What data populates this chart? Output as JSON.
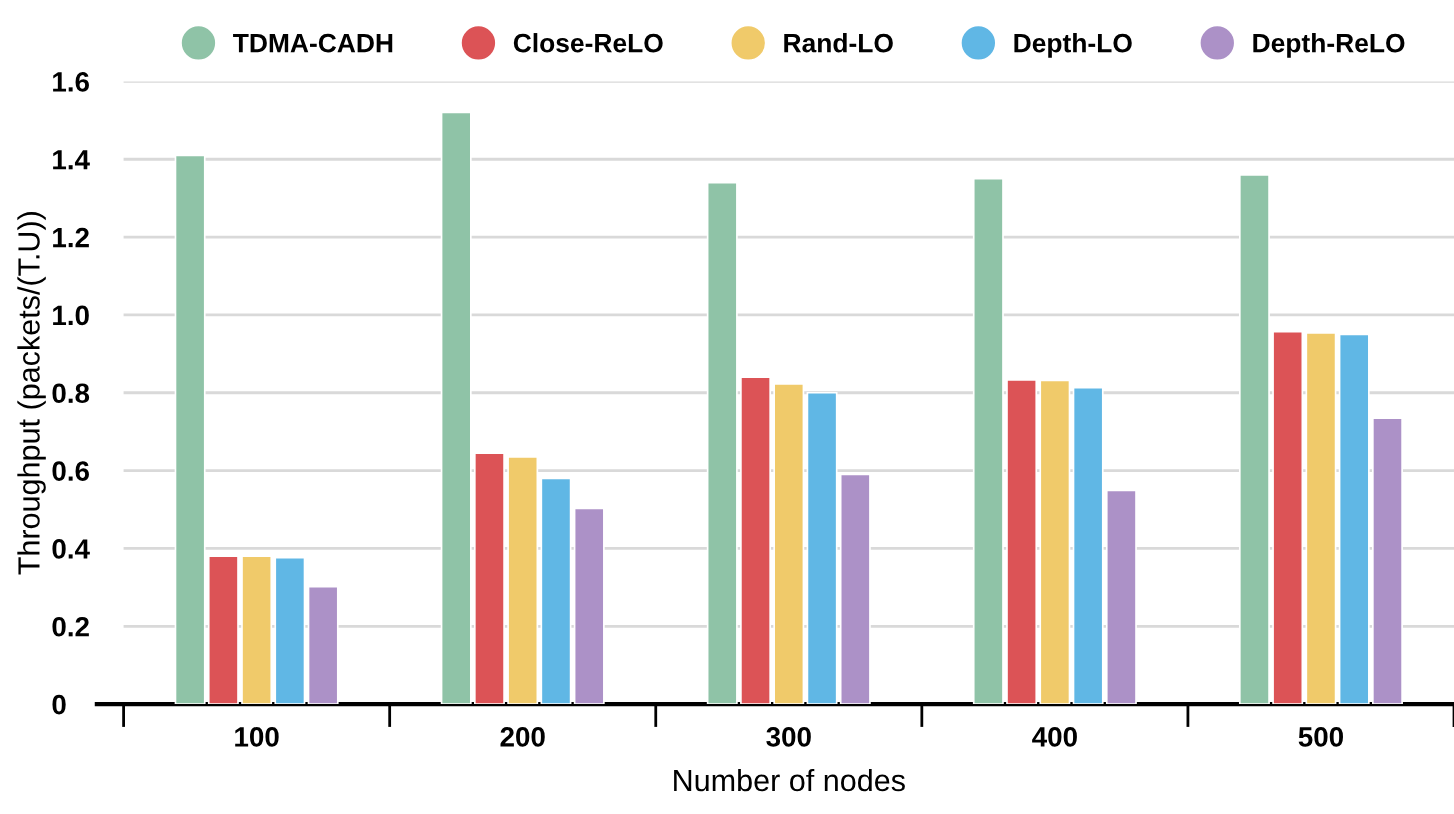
{
  "chart_data": {
    "type": "bar",
    "xlabel": "Number of nodes",
    "ylabel": "Throughput (packets/(T.U))",
    "categories": [
      "100",
      "200",
      "300",
      "400",
      "500"
    ],
    "series": [
      {
        "name": "TDMA-CADH",
        "color": "#8fc3a7",
        "values": [
          1.41,
          1.52,
          1.34,
          1.35,
          1.36
        ]
      },
      {
        "name": "Close-ReLO",
        "color": "#dc5356",
        "values": [
          0.38,
          0.645,
          0.84,
          0.833,
          0.957
        ]
      },
      {
        "name": "Rand-LO",
        "color": "#f0ca6a",
        "values": [
          0.38,
          0.635,
          0.823,
          0.832,
          0.954
        ]
      },
      {
        "name": "Depth-LO",
        "color": "#60b7e5",
        "values": [
          0.376,
          0.58,
          0.8,
          0.813,
          0.95
        ]
      },
      {
        "name": "Depth-ReLO",
        "color": "#ac91c7",
        "values": [
          0.302,
          0.503,
          0.59,
          0.549,
          0.735
        ]
      }
    ],
    "ylim": [
      0,
      1.6
    ],
    "yticks": [
      0,
      0.2,
      0.4,
      0.6,
      0.8,
      {
        "value": 1.0,
        "label": "1.0"
      },
      1.2,
      1.4,
      1.6
    ],
    "grid": "y",
    "legend": "top"
  }
}
